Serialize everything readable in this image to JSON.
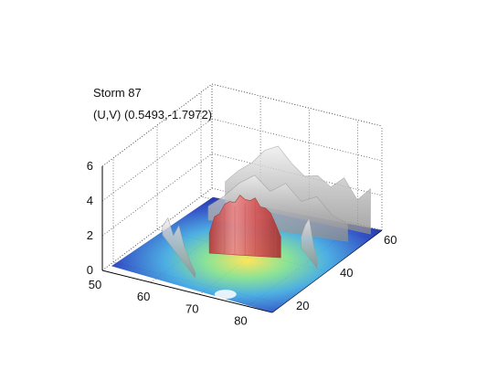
{
  "chart_data": {
    "type": "surface3d",
    "title_lines": [
      "Storm 87",
      "(U,V) (0.5493,-1.7972)"
    ],
    "x_ticks": [
      50,
      60,
      70,
      80
    ],
    "y_ticks": [
      20,
      40,
      60
    ],
    "z_ticks": [
      0,
      2,
      4,
      6
    ],
    "xlim": [
      50,
      85
    ],
    "ylim": [
      15,
      65
    ],
    "zlim": [
      0,
      6
    ],
    "grid": true,
    "colormap": "jet",
    "isosurface_colors": {
      "outer": "#c8c8c8",
      "inner": "#e06060"
    },
    "peak": {
      "x": 69,
      "y": 45,
      "z": 3.3
    }
  }
}
